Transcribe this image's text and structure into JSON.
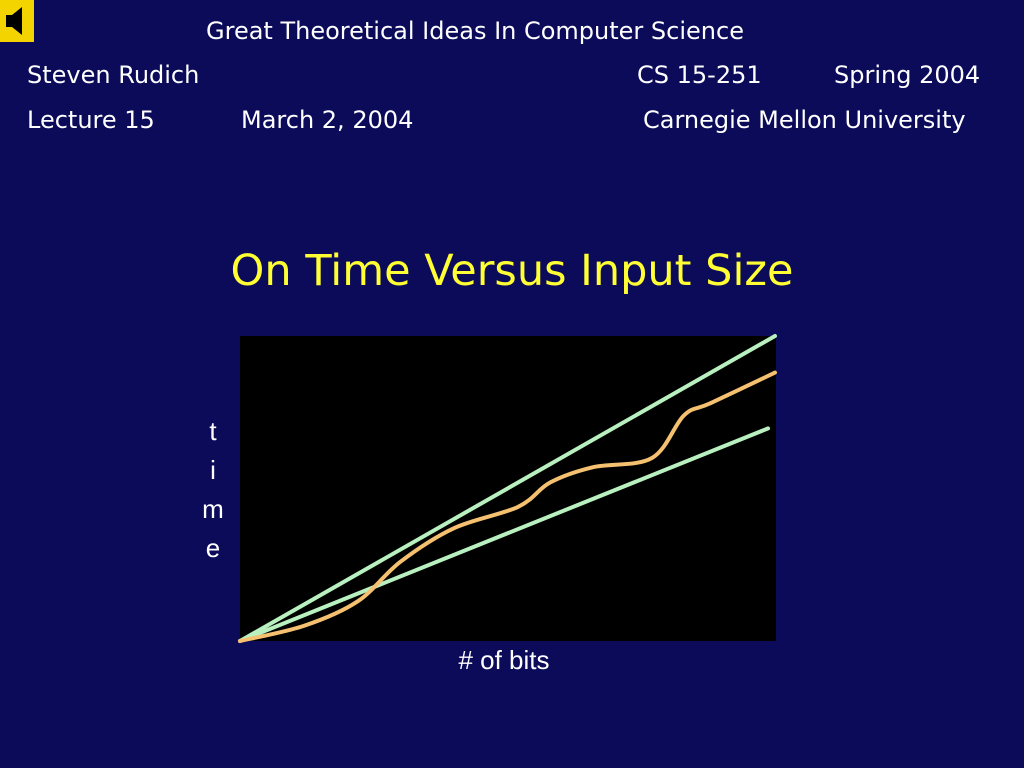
{
  "header": {
    "course_title": "Great Theoretical Ideas In Computer Science",
    "instructor": "Steven Rudich",
    "course_code": "CS 15-251",
    "term": "Spring 2004",
    "lecture": "Lecture 15",
    "date": "March 2, 2004",
    "university": "Carnegie Mellon University"
  },
  "slide": {
    "title": "On Time Versus Input Size"
  },
  "icons": {
    "audio": "speaker-icon"
  },
  "colors": {
    "background": "#0b0b5a",
    "title": "#ffff33",
    "bound_lines": "#b8f0c0",
    "curve": "#f5c070",
    "plot_background": "#000000"
  },
  "chart_data": {
    "type": "line",
    "title": "",
    "xlabel": "# of bits",
    "ylabel": "time",
    "ylabel_letters": [
      "t",
      "i",
      "m",
      "e"
    ],
    "grid": false,
    "axes_ticks": false,
    "series": [
      {
        "style": "upper-bound",
        "color": "#b8f0c0",
        "x": [
          0,
          1.0
        ],
        "y": [
          0,
          1.0
        ]
      },
      {
        "style": "lower-bound",
        "color": "#b8f0c0",
        "x": [
          0,
          0.987
        ],
        "y": [
          0,
          0.697
        ]
      },
      {
        "style": "running-time",
        "color": "#f5c070",
        "x": [
          0,
          0.12,
          0.22,
          0.3,
          0.4,
          0.52,
          0.58,
          0.66,
          0.77,
          0.83,
          0.88,
          1.0
        ],
        "y": [
          0,
          0.05,
          0.13,
          0.26,
          0.37,
          0.44,
          0.52,
          0.57,
          0.6,
          0.74,
          0.78,
          0.88
        ]
      }
    ]
  }
}
